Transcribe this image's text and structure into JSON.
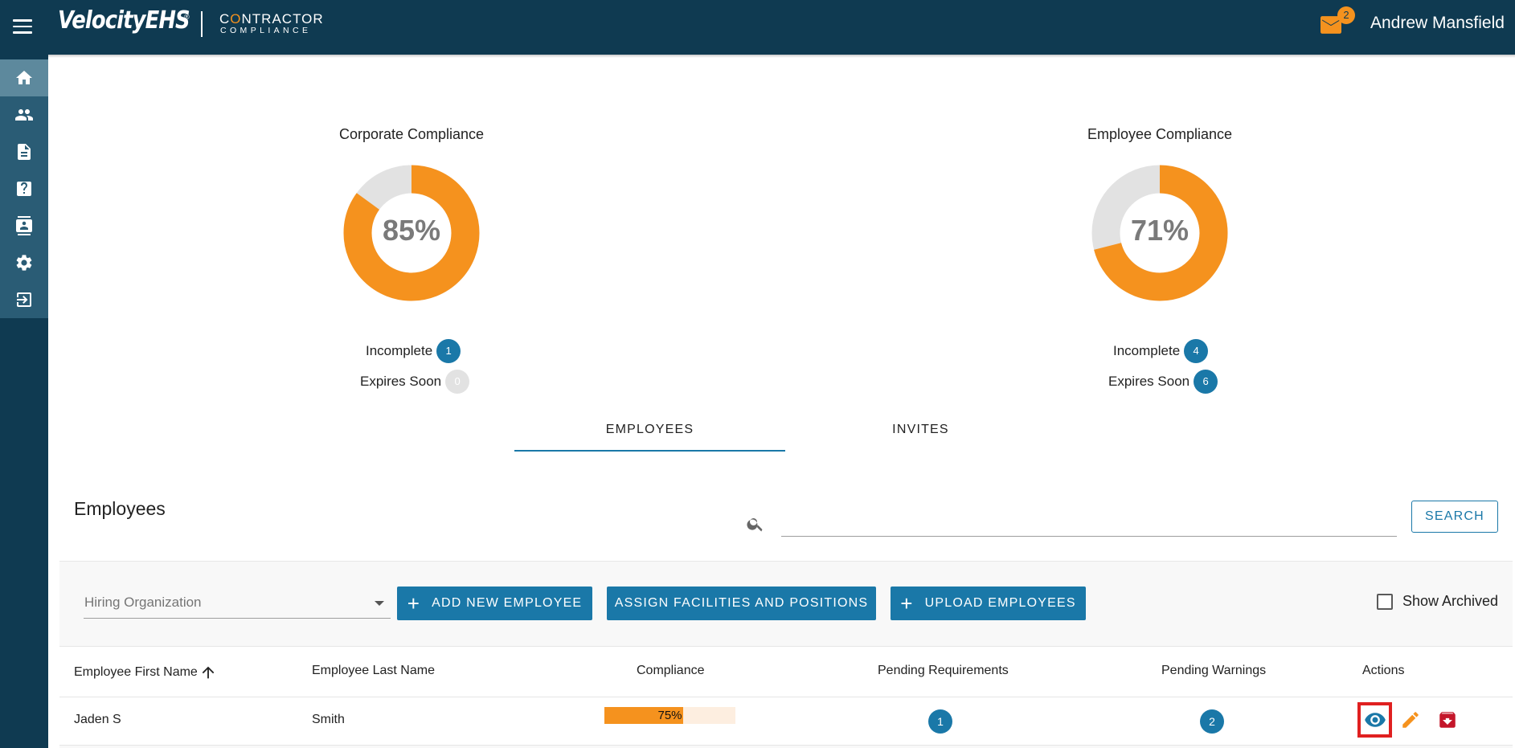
{
  "app": {
    "brand": "VelocityEHS",
    "brand_mark": "®",
    "product_line1_a": "C",
    "product_line1_o": "O",
    "product_line1_b": "NTRACTOR",
    "product_line2": "COMPLIANCE",
    "user_name": "Andrew Mansfield",
    "notification_count": "2"
  },
  "sidebar": {
    "items": [
      {
        "icon": "home-icon",
        "active": true
      },
      {
        "icon": "people-icon",
        "active": false
      },
      {
        "icon": "document-icon",
        "active": false
      },
      {
        "icon": "help-icon",
        "active": false
      },
      {
        "icon": "contacts-icon",
        "active": false
      },
      {
        "icon": "settings-icon",
        "active": false
      },
      {
        "icon": "logout-icon",
        "active": false
      }
    ]
  },
  "corporate": {
    "title": "Corporate Compliance",
    "percent_label": "85%",
    "percent": 0.85,
    "incomplete_label": "Incomplete",
    "incomplete_count": "1",
    "expires_label": "Expires Soon",
    "expires_count": "0"
  },
  "employee_summary": {
    "title": "Employee Compliance",
    "percent_label": "71%",
    "percent": 0.71,
    "incomplete_label": "Incomplete",
    "incomplete_count": "4",
    "expires_label": "Expires Soon",
    "expires_count": "6"
  },
  "colors": {
    "accent_orange": "#f5921e",
    "primary_blue": "#1a78a8",
    "navy": "#0f3a51",
    "gauge_track": "#e2e2e2"
  },
  "tabs": [
    {
      "label": "EMPLOYEES",
      "active": true
    },
    {
      "label": "INVITES",
      "active": false
    }
  ],
  "employees": {
    "title": "Employees",
    "search_placeholder": "",
    "search_button": "SEARCH",
    "hiring_org_placeholder": "Hiring Organization",
    "add_button": "ADD NEW EMPLOYEE",
    "assign_button": "ASSIGN FACILITIES AND POSITIONS",
    "upload_button": "UPLOAD EMPLOYEES",
    "show_archived": "Show Archived",
    "columns": [
      "Employee First Name",
      "Employee Last Name",
      "Compliance",
      "Pending Requirements",
      "Pending Warnings",
      "Actions"
    ],
    "sort_icon": "arrow-up-icon",
    "rows": [
      {
        "first_name": "Jaden S",
        "last_name": "Smith",
        "compliance_label": "75%",
        "compliance": 0.75,
        "pending_requirements": "1",
        "pending_warnings": "2"
      }
    ]
  }
}
